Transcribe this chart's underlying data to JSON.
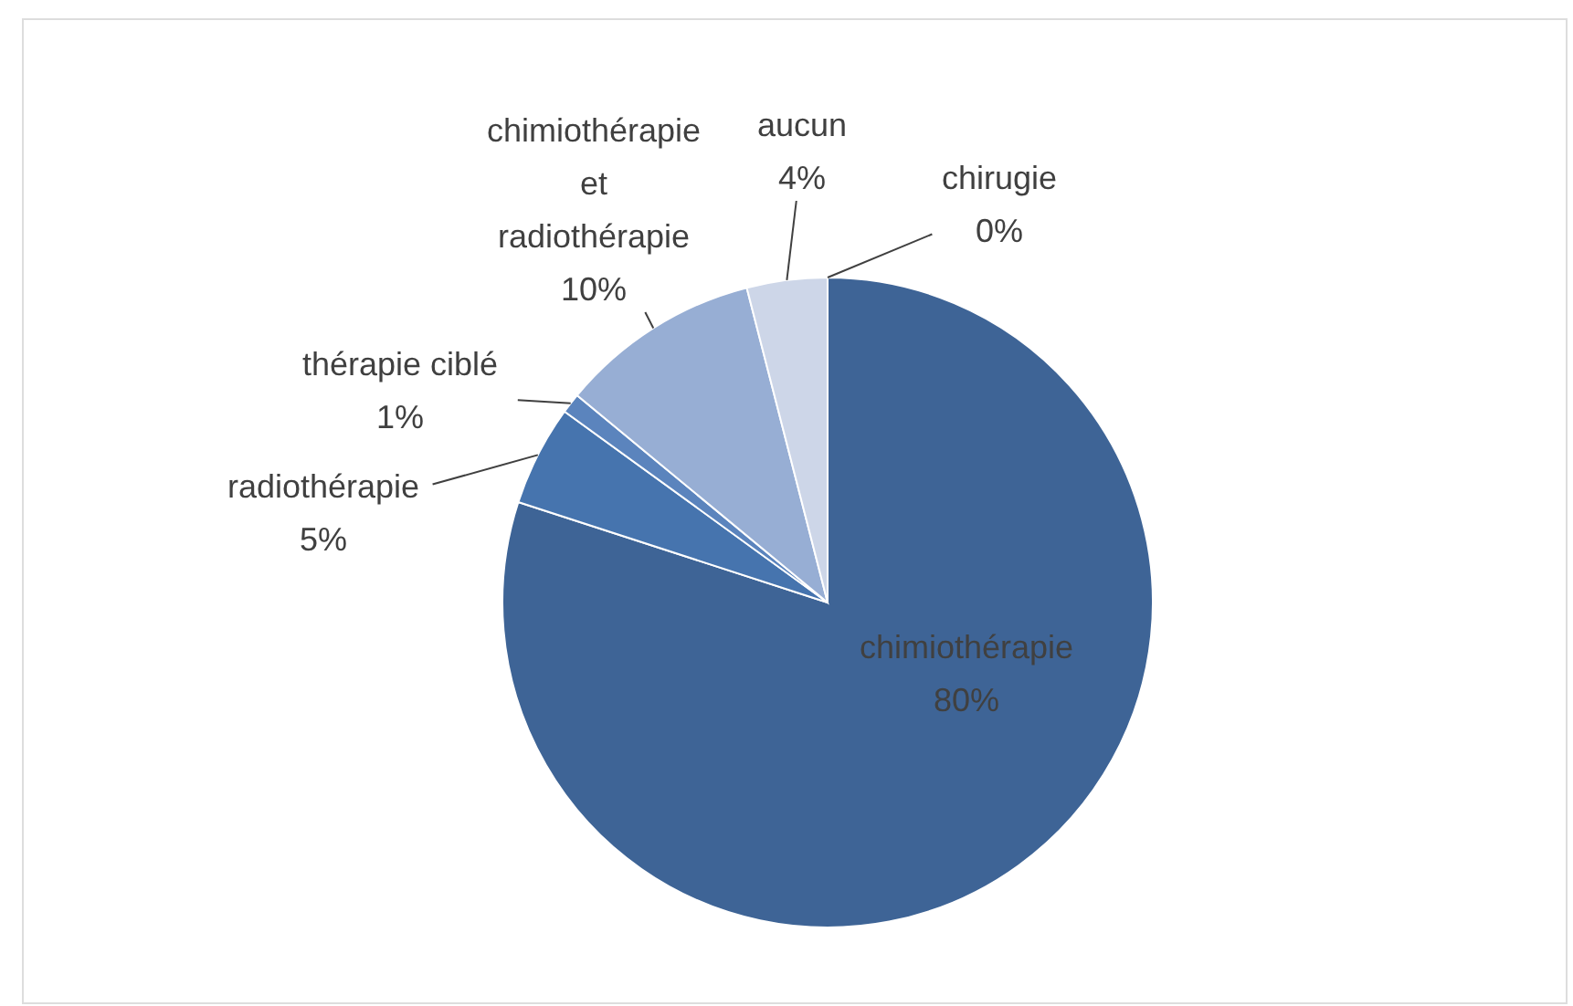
{
  "chart_data": {
    "type": "pie",
    "categories": [
      "chimiothérapie",
      "radiothérapie",
      "thérapie ciblé",
      "chimiothérapie et radiothérapie",
      "aucun",
      "chirugie"
    ],
    "values": [
      80,
      5,
      1,
      10,
      4,
      0
    ],
    "colors": [
      "#3e6496",
      "#4674ae",
      "#5b84bd",
      "#97aed4",
      "#cdd6e8",
      "#e4e9f2"
    ],
    "value_labels": [
      "80%",
      "5%",
      "1%",
      "10%",
      "4%",
      "0%"
    ]
  }
}
